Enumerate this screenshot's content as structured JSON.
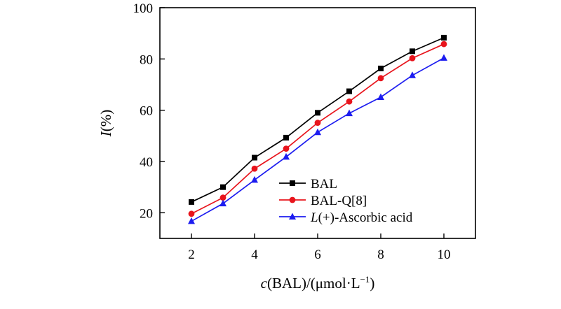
{
  "chart_data": {
    "type": "line",
    "title": "",
    "x": [
      2,
      3,
      4,
      5,
      6,
      7,
      8,
      9,
      10
    ],
    "xlim": [
      1,
      11
    ],
    "ylim": [
      10,
      100
    ],
    "xticks": [
      2,
      4,
      6,
      8,
      10
    ],
    "yticks": [
      20,
      40,
      60,
      80,
      100
    ],
    "xlabel": {
      "italic": "c",
      "rest": "(BAL)/(μmol·L",
      "sup": "−1",
      "close": ")"
    },
    "ylabel": {
      "italic": "I",
      "rest": "(%)"
    },
    "grid": false,
    "legend_position": "bottom-right",
    "series": [
      {
        "name": "BAL",
        "label_italic": "",
        "label_rest": "BAL",
        "color": "#000000",
        "marker": "square",
        "values": [
          24.2,
          30.0,
          41.5,
          49.3,
          59.0,
          67.4,
          76.3,
          83.0,
          88.3
        ]
      },
      {
        "name": "BAL-Q[8]",
        "label_italic": "",
        "label_rest": "BAL-Q[8]",
        "color": "#e8141c",
        "marker": "circle",
        "values": [
          19.6,
          25.9,
          37.2,
          45.0,
          55.1,
          63.4,
          72.5,
          80.3,
          85.8
        ]
      },
      {
        "name": "L(+)-Ascorbic acid",
        "label_italic": "L",
        "label_rest": "(+)-Ascorbic acid",
        "color": "#1c1cf0",
        "marker": "triangle",
        "values": [
          16.7,
          23.6,
          32.8,
          41.8,
          51.4,
          58.8,
          65.1,
          73.6,
          80.4
        ]
      }
    ]
  }
}
